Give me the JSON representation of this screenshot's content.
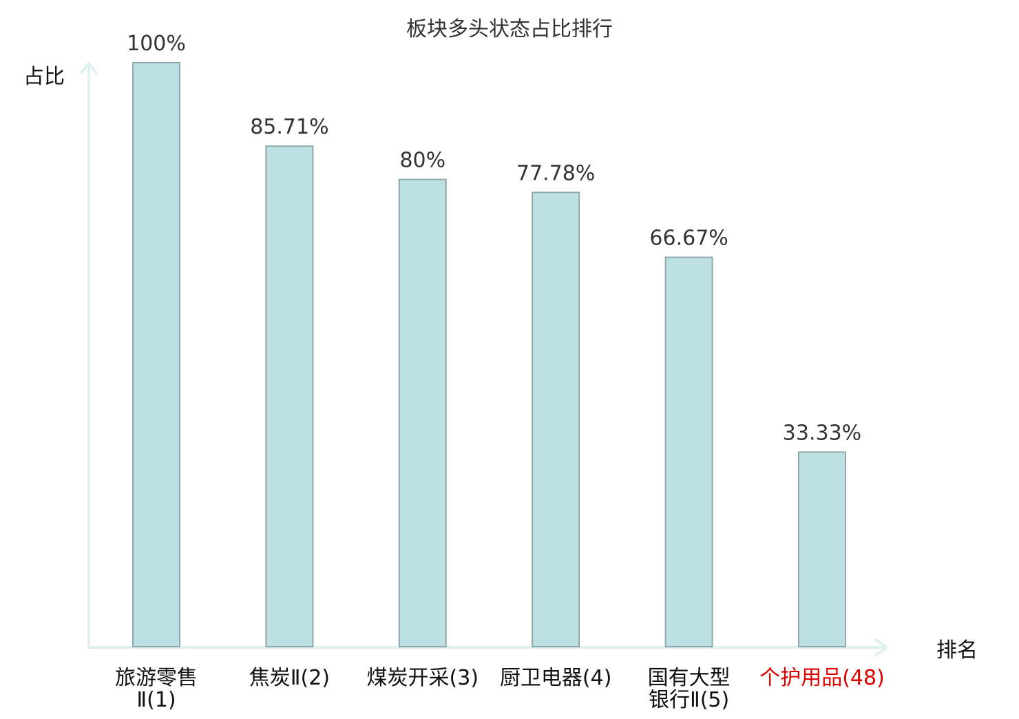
{
  "chart_data": {
    "type": "bar",
    "title": "板块多头状态占比排行",
    "xlabel": "排名",
    "ylabel": "占比",
    "ylim": [
      0,
      100
    ],
    "grid": false,
    "categories": [
      {
        "lines": [
          "旅游零售",
          "Ⅱ(1)"
        ],
        "highlight": false
      },
      {
        "lines": [
          "焦炭Ⅱ(2)"
        ],
        "highlight": false
      },
      {
        "lines": [
          "煤炭开采(3)"
        ],
        "highlight": false
      },
      {
        "lines": [
          "厨卫电器(4)"
        ],
        "highlight": false
      },
      {
        "lines": [
          "国有大型",
          "银行Ⅱ(5)"
        ],
        "highlight": false
      },
      {
        "lines": [
          "个护用品(48)"
        ],
        "highlight": true
      }
    ],
    "values": [
      100,
      85.71,
      80,
      77.78,
      66.67,
      33.33
    ],
    "value_labels": [
      "100%",
      "85.71%",
      "80%",
      "77.78%",
      "66.67%",
      "33.33%"
    ]
  },
  "colors": {
    "bar_fill": "#bde0e3",
    "bar_stroke": "#8fa9ab",
    "axis": "#dff2ef",
    "text": "#333333",
    "highlight_text": "#e00000"
  }
}
